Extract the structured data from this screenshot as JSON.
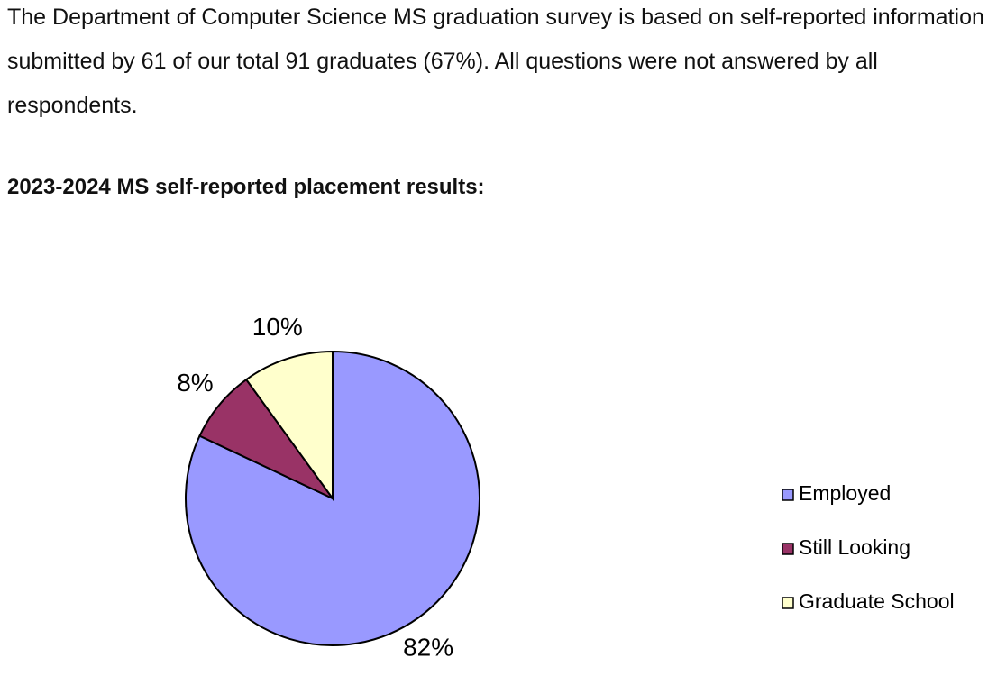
{
  "intro": "The Department of Computer Science MS graduation survey is based on self-reported information submitted by 61 of our total 91 graduates (67%). All questions were not answered by all respondents.",
  "heading": "2023-2024 MS self-reported placement results:",
  "chart_data": {
    "type": "pie",
    "categories": [
      "Employed",
      "Still Looking",
      "Graduate School"
    ],
    "values": [
      82,
      8,
      10
    ],
    "value_labels": [
      "82%",
      "8%",
      "10%"
    ],
    "colors": [
      "#9999ff",
      "#993366",
      "#ffffcc"
    ],
    "legend": "right"
  }
}
